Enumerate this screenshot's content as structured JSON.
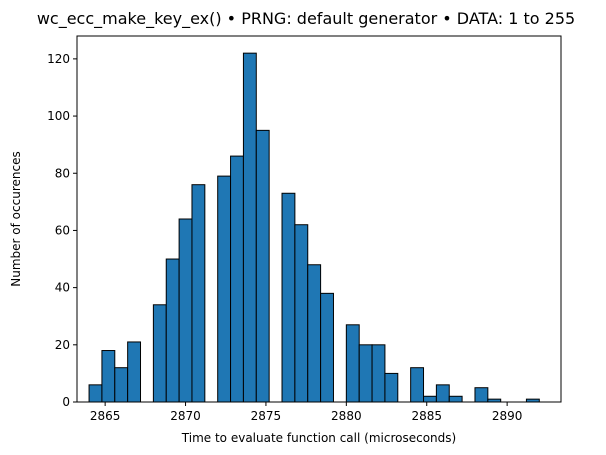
{
  "chart_data": {
    "type": "bar",
    "title": "wc_ecc_make_key_ex() • PRNG: default generator • DATA: 1 to 255",
    "xlabel": "Time to evaluate function call (microseconds)",
    "ylabel": "Number of occurences",
    "xlim": [
      2863.25,
      2893.35
    ],
    "ylim": [
      0,
      128
    ],
    "xticks": [
      2865,
      2870,
      2875,
      2880,
      2885,
      2890
    ],
    "yticks": [
      0,
      20,
      40,
      60,
      80,
      100,
      120
    ],
    "bin_width": 0.8,
    "bar_color": "#1f77b4",
    "edge_color": "#000000",
    "grid": false,
    "bins": [
      {
        "x": 2864.0,
        "count": 6
      },
      {
        "x": 2864.8,
        "count": 18
      },
      {
        "x": 2865.6,
        "count": 12
      },
      {
        "x": 2866.4,
        "count": 21
      },
      {
        "x": 2868.0,
        "count": 34
      },
      {
        "x": 2868.8,
        "count": 50
      },
      {
        "x": 2869.6,
        "count": 64
      },
      {
        "x": 2870.4,
        "count": 76
      },
      {
        "x": 2872.0,
        "count": 79
      },
      {
        "x": 2872.8,
        "count": 86
      },
      {
        "x": 2873.6,
        "count": 122
      },
      {
        "x": 2874.4,
        "count": 95
      },
      {
        "x": 2876.0,
        "count": 73
      },
      {
        "x": 2876.8,
        "count": 62
      },
      {
        "x": 2877.6,
        "count": 48
      },
      {
        "x": 2878.4,
        "count": 38
      },
      {
        "x": 2880.0,
        "count": 27
      },
      {
        "x": 2880.8,
        "count": 20
      },
      {
        "x": 2881.6,
        "count": 20
      },
      {
        "x": 2882.4,
        "count": 10
      },
      {
        "x": 2884.0,
        "count": 12
      },
      {
        "x": 2884.8,
        "count": 2
      },
      {
        "x": 2885.6,
        "count": 6
      },
      {
        "x": 2886.4,
        "count": 2
      },
      {
        "x": 2888.0,
        "count": 5
      },
      {
        "x": 2888.8,
        "count": 1
      },
      {
        "x": 2891.2,
        "count": 1
      }
    ]
  }
}
